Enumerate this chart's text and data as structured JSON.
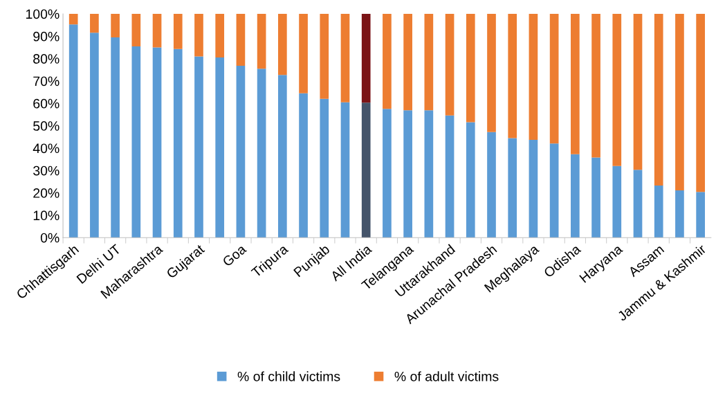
{
  "chart_data": {
    "type": "bar",
    "stacked": true,
    "categories": [
      "Chhattisgarh",
      null,
      "Delhi UT",
      null,
      "Maharashtra",
      null,
      "Gujarat",
      null,
      "Goa",
      null,
      "Tripura",
      null,
      "Punjab",
      null,
      "All India",
      null,
      "Telangana",
      null,
      "Uttarakhand",
      null,
      "Arunachal Pradesh",
      null,
      "Meghalaya",
      null,
      "Odisha",
      null,
      "Haryana",
      null,
      "Assam",
      null,
      "Jammu & Kashmir"
    ],
    "series": [
      {
        "name": "% of child victims",
        "color": "#5b9bd5",
        "colors": [
          "#5b9bd5",
          "#5b9bd5",
          "#5b9bd5",
          "#5b9bd5",
          "#5b9bd5",
          "#5b9bd5",
          "#5b9bd5",
          "#5b9bd5",
          "#5b9bd5",
          "#5b9bd5",
          "#5b9bd5",
          "#5b9bd5",
          "#5b9bd5",
          "#5b9bd5",
          "#44546a",
          "#5b9bd5",
          "#5b9bd5",
          "#5b9bd5",
          "#5b9bd5",
          "#5b9bd5",
          "#5b9bd5",
          "#5b9bd5",
          "#5b9bd5",
          "#5b9bd5",
          "#5b9bd5",
          "#5b9bd5",
          "#5b9bd5",
          "#5b9bd5",
          "#5b9bd5",
          "#5b9bd5",
          "#5b9bd5"
        ],
        "values": [
          95.3,
          91.6,
          89.5,
          85.5,
          85.0,
          84.3,
          81.0,
          80.5,
          76.8,
          75.5,
          72.7,
          64.5,
          62.0,
          60.5,
          60.3,
          57.5,
          56.9,
          56.9,
          54.6,
          51.6,
          47.2,
          44.5,
          43.7,
          42.1,
          37.3,
          35.8,
          32.0,
          30.3,
          23.3,
          21.1,
          20.4
        ]
      },
      {
        "name": "% of adult victims",
        "color": "#ed7d31",
        "colors": [
          "#ed7d31",
          "#ed7d31",
          "#ed7d31",
          "#ed7d31",
          "#ed7d31",
          "#ed7d31",
          "#ed7d31",
          "#ed7d31",
          "#ed7d31",
          "#ed7d31",
          "#ed7d31",
          "#ed7d31",
          "#ed7d31",
          "#ed7d31",
          "#7b1416",
          "#ed7d31",
          "#ed7d31",
          "#ed7d31",
          "#ed7d31",
          "#ed7d31",
          "#ed7d31",
          "#ed7d31",
          "#ed7d31",
          "#ed7d31",
          "#ed7d31",
          "#ed7d31",
          "#ed7d31",
          "#ed7d31",
          "#ed7d31",
          "#ed7d31",
          "#ed7d31"
        ],
        "values": [
          4.7,
          8.4,
          10.5,
          14.5,
          15.0,
          15.7,
          19.0,
          19.5,
          23.2,
          24.5,
          27.3,
          35.5,
          38.0,
          39.5,
          39.7,
          42.5,
          43.1,
          43.1,
          45.4,
          48.4,
          52.8,
          55.5,
          56.3,
          57.9,
          62.7,
          64.2,
          68.0,
          69.7,
          76.7,
          78.9,
          79.6
        ]
      }
    ],
    "ylim": [
      0,
      100
    ],
    "yticks": [
      {
        "value": 0,
        "label": "0%"
      },
      {
        "value": 10,
        "label": "10%"
      },
      {
        "value": 20,
        "label": "20%"
      },
      {
        "value": 30,
        "label": "30%"
      },
      {
        "value": 40,
        "label": "40%"
      },
      {
        "value": 50,
        "label": "50%"
      },
      {
        "value": 60,
        "label": "60%"
      },
      {
        "value": 70,
        "label": "70%"
      },
      {
        "value": 80,
        "label": "80%"
      },
      {
        "value": 90,
        "label": "90%"
      },
      {
        "value": 100,
        "label": "100%"
      }
    ],
    "grid": false,
    "legend": "bottom"
  }
}
